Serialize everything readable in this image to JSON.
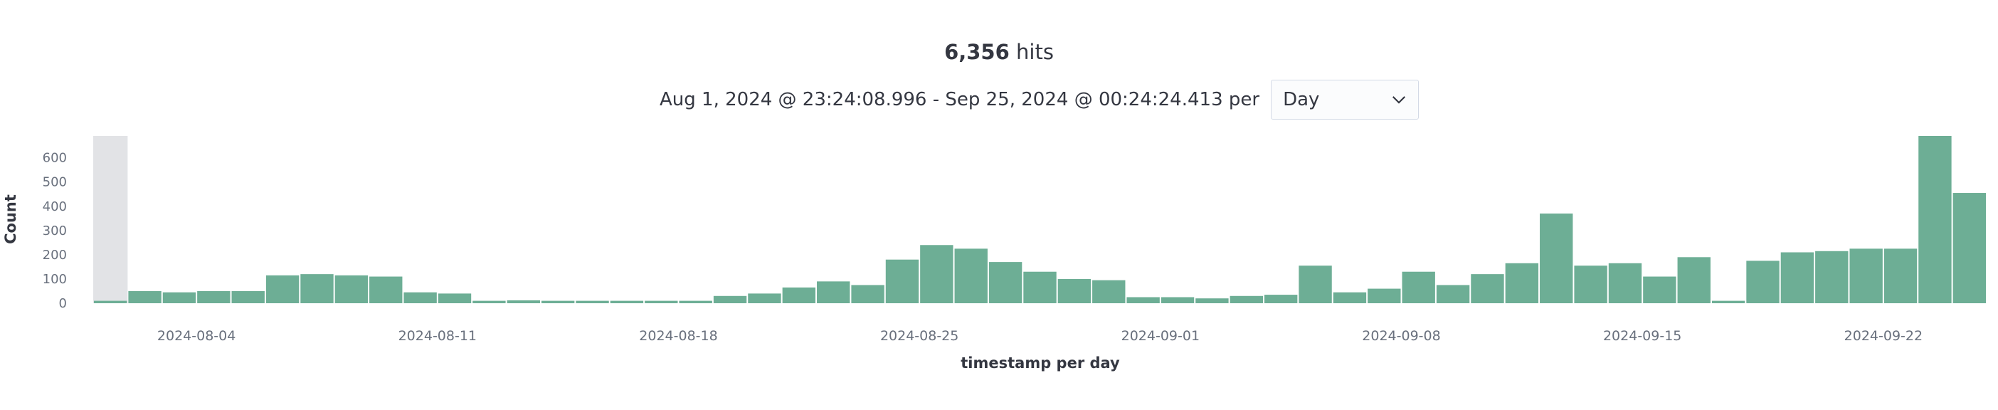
{
  "summary": {
    "hits_count": "6,356",
    "hits_label": "hits",
    "range_text": "Aug 1, 2024 @ 23:24:08.996 - Sep 25, 2024 @ 00:24:24.413 per",
    "interval_value": "Day"
  },
  "colors": {
    "bar": "#6dae95",
    "highlight": "#e2e3e6",
    "text": "#343741",
    "tick": "#69707d"
  },
  "chart_data": {
    "type": "bar",
    "title": "",
    "xlabel": "timestamp per day",
    "ylabel": "Count",
    "ylim": [
      0,
      690
    ],
    "y_ticks": [
      0,
      100,
      200,
      300,
      400,
      500,
      600
    ],
    "grid": false,
    "legend": "none",
    "categories": [
      "2024-08-01",
      "2024-08-02",
      "2024-08-03",
      "2024-08-04",
      "2024-08-05",
      "2024-08-06",
      "2024-08-07",
      "2024-08-08",
      "2024-08-09",
      "2024-08-10",
      "2024-08-11",
      "2024-08-12",
      "2024-08-13",
      "2024-08-14",
      "2024-08-15",
      "2024-08-16",
      "2024-08-17",
      "2024-08-18",
      "2024-08-19",
      "2024-08-20",
      "2024-08-21",
      "2024-08-22",
      "2024-08-23",
      "2024-08-24",
      "2024-08-25",
      "2024-08-26",
      "2024-08-27",
      "2024-08-28",
      "2024-08-29",
      "2024-08-30",
      "2024-08-31",
      "2024-09-01",
      "2024-09-02",
      "2024-09-03",
      "2024-09-04",
      "2024-09-05",
      "2024-09-06",
      "2024-09-07",
      "2024-09-08",
      "2024-09-09",
      "2024-09-10",
      "2024-09-11",
      "2024-09-12",
      "2024-09-13",
      "2024-09-14",
      "2024-09-15",
      "2024-09-16",
      "2024-09-17",
      "2024-09-18",
      "2024-09-19",
      "2024-09-20",
      "2024-09-21",
      "2024-09-22",
      "2024-09-23",
      "2024-09-24"
    ],
    "values": [
      10,
      50,
      45,
      50,
      50,
      115,
      120,
      115,
      110,
      45,
      40,
      10,
      12,
      10,
      10,
      10,
      10,
      10,
      30,
      40,
      65,
      90,
      75,
      180,
      240,
      225,
      170,
      130,
      100,
      95,
      25,
      25,
      20,
      30,
      35,
      155,
      45,
      60,
      130,
      75,
      120,
      165,
      370,
      155,
      165,
      110,
      190,
      10,
      175,
      210,
      215,
      225,
      225,
      690,
      455
    ],
    "x_tick_labels": [
      "2024-08-04",
      "2024-08-11",
      "2024-08-18",
      "2024-08-25",
      "2024-09-01",
      "2024-09-08",
      "2024-09-15",
      "2024-09-22"
    ],
    "highlighted_categories": [
      "2024-08-01"
    ]
  }
}
